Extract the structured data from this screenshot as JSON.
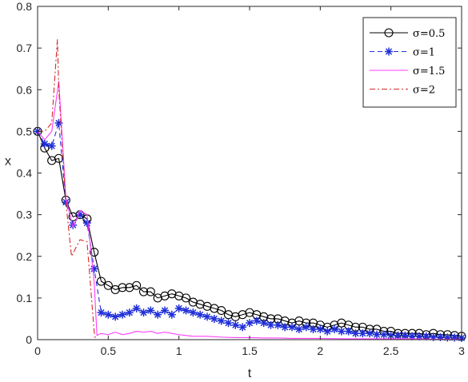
{
  "chart_data": {
    "type": "line",
    "xlabel": "t",
    "ylabel": "x",
    "xlim": [
      0,
      3
    ],
    "ylim": [
      0,
      0.8
    ],
    "xticks": [
      0,
      0.5,
      1,
      1.5,
      2,
      2.5,
      3
    ],
    "xtick_labels": [
      "0",
      "0.5",
      "1",
      "1.5",
      "2",
      "2.5",
      "3"
    ],
    "yticks": [
      0,
      0.1,
      0.2,
      0.3,
      0.4,
      0.5,
      0.6,
      0.7,
      0.8
    ],
    "ytick_labels": [
      "0",
      "0.1",
      "0.2",
      "0.3",
      "0.4",
      "0.5",
      "0.6",
      "0.7",
      "0.8"
    ],
    "grid": false,
    "legend_position": "top-right",
    "series": [
      {
        "name": "σ=0.5",
        "color": "#000000",
        "marker": "circle",
        "line": "solid",
        "x": [
          0,
          0.05,
          0.1,
          0.15,
          0.2,
          0.25,
          0.3,
          0.35,
          0.4,
          0.45,
          0.5,
          0.55,
          0.6,
          0.65,
          0.7,
          0.75,
          0.8,
          0.85,
          0.9,
          0.95,
          1.0,
          1.05,
          1.1,
          1.15,
          1.2,
          1.25,
          1.3,
          1.35,
          1.4,
          1.45,
          1.5,
          1.55,
          1.6,
          1.65,
          1.7,
          1.75,
          1.8,
          1.85,
          1.9,
          1.95,
          2.0,
          2.05,
          2.1,
          2.15,
          2.2,
          2.25,
          2.3,
          2.35,
          2.4,
          2.45,
          2.5,
          2.55,
          2.6,
          2.65,
          2.7,
          2.75,
          2.8,
          2.85,
          2.9,
          2.95,
          3.0
        ],
        "values": [
          0.5,
          0.46,
          0.43,
          0.435,
          0.335,
          0.295,
          0.3,
          0.29,
          0.21,
          0.14,
          0.13,
          0.12,
          0.125,
          0.125,
          0.13,
          0.115,
          0.115,
          0.1,
          0.105,
          0.11,
          0.105,
          0.1,
          0.09,
          0.085,
          0.08,
          0.075,
          0.07,
          0.06,
          0.055,
          0.06,
          0.065,
          0.06,
          0.055,
          0.05,
          0.05,
          0.045,
          0.04,
          0.045,
          0.04,
          0.04,
          0.035,
          0.03,
          0.035,
          0.04,
          0.035,
          0.03,
          0.03,
          0.025,
          0.025,
          0.02,
          0.02,
          0.015,
          0.015,
          0.015,
          0.015,
          0.012,
          0.015,
          0.012,
          0.012,
          0.01,
          0.008
        ]
      },
      {
        "name": "σ=1",
        "color": "#1f2fd8",
        "marker": "star",
        "line": "dashed",
        "x": [
          0,
          0.05,
          0.1,
          0.15,
          0.2,
          0.25,
          0.3,
          0.35,
          0.4,
          0.45,
          0.5,
          0.55,
          0.6,
          0.65,
          0.7,
          0.75,
          0.8,
          0.85,
          0.9,
          0.95,
          1.0,
          1.05,
          1.1,
          1.15,
          1.2,
          1.25,
          1.3,
          1.35,
          1.4,
          1.45,
          1.5,
          1.55,
          1.6,
          1.65,
          1.7,
          1.75,
          1.8,
          1.85,
          1.9,
          1.95,
          2.0,
          2.05,
          2.1,
          2.15,
          2.2,
          2.25,
          2.3,
          2.35,
          2.4,
          2.45,
          2.5,
          2.55,
          2.6,
          2.65,
          2.7,
          2.75,
          2.8,
          2.85,
          2.9,
          2.95,
          3.0
        ],
        "values": [
          0.5,
          0.47,
          0.465,
          0.52,
          0.33,
          0.275,
          0.3,
          0.28,
          0.17,
          0.065,
          0.06,
          0.055,
          0.06,
          0.065,
          0.075,
          0.065,
          0.07,
          0.06,
          0.07,
          0.06,
          0.075,
          0.07,
          0.065,
          0.06,
          0.055,
          0.05,
          0.045,
          0.04,
          0.035,
          0.03,
          0.04,
          0.045,
          0.04,
          0.035,
          0.035,
          0.03,
          0.03,
          0.025,
          0.03,
          0.025,
          0.025,
          0.02,
          0.025,
          0.02,
          0.02,
          0.015,
          0.015,
          0.015,
          0.012,
          0.012,
          0.01,
          0.01,
          0.01,
          0.008,
          0.008,
          0.008,
          0.006,
          0.006,
          0.005,
          0.005,
          0.004
        ]
      },
      {
        "name": "σ=1.5",
        "color": "#ff3cff",
        "marker": "none",
        "line": "solid",
        "x": [
          0,
          0.05,
          0.1,
          0.15,
          0.2,
          0.25,
          0.3,
          0.35,
          0.4,
          0.42,
          0.45,
          0.5,
          0.55,
          0.6,
          0.65,
          0.7,
          0.75,
          0.8,
          0.85,
          0.9,
          0.95,
          1.0,
          1.05,
          1.1,
          1.2,
          1.3,
          1.4,
          1.5,
          1.6,
          1.7,
          1.8,
          2.0,
          2.2,
          2.4,
          2.6,
          2.8,
          3.0
        ],
        "values": [
          0.5,
          0.48,
          0.5,
          0.62,
          0.34,
          0.27,
          0.31,
          0.3,
          0.14,
          0.01,
          0.015,
          0.012,
          0.018,
          0.012,
          0.015,
          0.02,
          0.018,
          0.02,
          0.015,
          0.018,
          0.015,
          0.012,
          0.01,
          0.008,
          0.008,
          0.006,
          0.005,
          0.005,
          0.004,
          0.004,
          0.003,
          0.003,
          0.002,
          0.002,
          0.002,
          0.001,
          0.001
        ]
      },
      {
        "name": "σ=2",
        "color": "#d62a2a",
        "marker": "none",
        "line": "dashdot",
        "x": [
          0,
          0.05,
          0.1,
          0.14,
          0.15,
          0.2,
          0.24,
          0.3,
          0.35,
          0.4,
          0.41,
          0.45,
          0.5,
          0.6,
          0.7,
          0.8,
          1.0,
          1.2,
          1.5,
          2.0,
          2.5,
          3.0
        ],
        "values": [
          0.5,
          0.5,
          0.52,
          0.72,
          0.6,
          0.33,
          0.2,
          0.24,
          0.235,
          0.02,
          0.0,
          0.0,
          0.0,
          0.0,
          0.0,
          0.0,
          0.0,
          0.0,
          0.0,
          0.0,
          0.0,
          0.0
        ]
      }
    ]
  }
}
